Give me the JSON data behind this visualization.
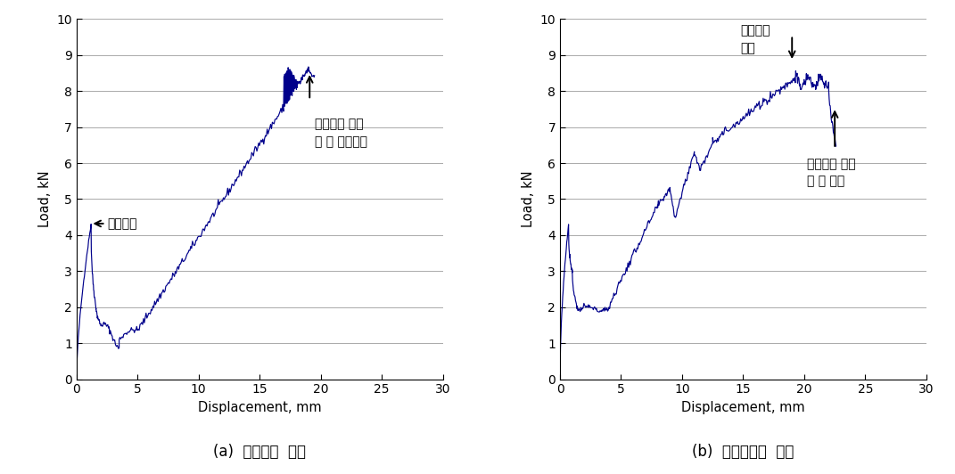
{
  "plot_color": "#00008B",
  "bg_color": "#ffffff",
  "xlabel": "Displacement, mm",
  "ylabel": "Load, kN",
  "xlim": [
    0,
    30
  ],
  "ylim": [
    0,
    10
  ],
  "xticks": [
    0,
    5,
    10,
    15,
    20,
    25,
    30
  ],
  "yticks": [
    0,
    1,
    2,
    3,
    4,
    5,
    6,
    7,
    8,
    9,
    10
  ],
  "caption_a": "(a)  탄소섬유  시트",
  "caption_b": "(b)  하이브리드  시트",
  "annot1_text": "균열하중",
  "annot2_text": "탄소섬유 파단\n및 보 취성파괴",
  "annot3_text": "탄소섬유\n파단",
  "annot4_text": "유리섬유 파단\n및 보 파괴"
}
